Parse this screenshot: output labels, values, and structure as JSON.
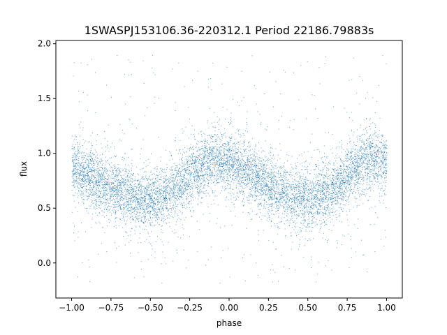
{
  "chart_data": {
    "type": "scatter",
    "title": "1SWASPJ153106.36-220312.1 Period 22186.79883s",
    "xlabel": "phase",
    "ylabel": "flux",
    "xlim": [
      -1.1,
      1.1
    ],
    "ylim": [
      -0.32,
      2.03
    ],
    "xticks": [
      {
        "value": -1.0,
        "label": "−1.00"
      },
      {
        "value": -0.75,
        "label": "−0.75"
      },
      {
        "value": -0.5,
        "label": "−0.50"
      },
      {
        "value": -0.25,
        "label": "−0.25"
      },
      {
        "value": 0.0,
        "label": "0.00"
      },
      {
        "value": 0.25,
        "label": "0.25"
      },
      {
        "value": 0.5,
        "label": "0.50"
      },
      {
        "value": 0.75,
        "label": "0.75"
      },
      {
        "value": 1.0,
        "label": "1.00"
      }
    ],
    "yticks": [
      {
        "value": 0.0,
        "label": "0.0"
      },
      {
        "value": 0.5,
        "label": "0.5"
      },
      {
        "value": 1.0,
        "label": "1.0"
      },
      {
        "value": 1.5,
        "label": "1.5"
      },
      {
        "value": 2.0,
        "label": "2.0"
      }
    ],
    "grid": false,
    "marker_color": "#1f77b4",
    "series": [
      {
        "x_range": [
          -1.0,
          1.0
        ],
        "trend": {
          "phase": [
            -1.0,
            -0.9,
            -0.8,
            -0.7,
            -0.6,
            -0.5,
            -0.4,
            -0.3,
            -0.2,
            -0.1,
            0.0,
            0.1,
            0.2,
            0.3,
            0.4,
            0.5,
            0.6,
            0.7,
            0.8,
            0.9,
            1.0
          ],
          "flux": [
            0.86,
            0.8,
            0.72,
            0.65,
            0.6,
            0.58,
            0.62,
            0.72,
            0.88,
            0.95,
            0.92,
            0.84,
            0.75,
            0.66,
            0.6,
            0.58,
            0.63,
            0.73,
            0.88,
            0.95,
            0.92
          ]
        },
        "scatter_sigma": 0.13,
        "outlier_range": [
          -0.2,
          1.9
        ]
      }
    ]
  }
}
